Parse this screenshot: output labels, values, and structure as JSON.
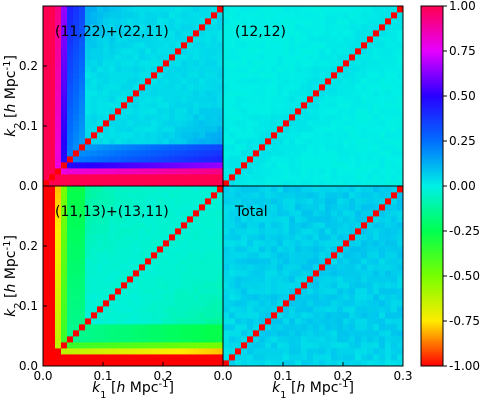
{
  "chart_data": {
    "type": "heatmap",
    "panels": [
      {
        "id": "p1",
        "label": "(11,22)+(22,11)",
        "pattern": "panel1",
        "x_range": [
          0.0,
          0.3
        ],
        "y_range": [
          0.0,
          0.3
        ],
        "yticks": [
          "0.0",
          "0.1",
          "0.2"
        ],
        "xticks": [],
        "ylabel": "k_2 [h Mpc^{-1}]",
        "xlabel": ""
      },
      {
        "id": "p2",
        "label": "(12,12)",
        "pattern": "panel2",
        "x_range": [
          0.0,
          0.3
        ],
        "y_range": [
          0.0,
          0.3
        ],
        "yticks": [],
        "xticks": [],
        "ylabel": "",
        "xlabel": ""
      },
      {
        "id": "p3",
        "label": "(11,13)+(13,11)",
        "pattern": "panel3",
        "x_range": [
          0.0,
          0.3
        ],
        "y_range": [
          0.0,
          0.3
        ],
        "yticks": [
          "0.0",
          "0.1",
          "0.2"
        ],
        "xticks": [
          "0.0",
          "0.1",
          "0.2"
        ],
        "ylabel": "k_2 [h Mpc^{-1}]",
        "xlabel": "k_1 [h Mpc^{-1}]"
      },
      {
        "id": "p4",
        "label": "Total",
        "pattern": "panel4",
        "x_range": [
          0.0,
          0.3
        ],
        "y_range": [
          0.0,
          0.3
        ],
        "yticks": [],
        "xticks": [
          "0.0",
          "0.1",
          "0.2",
          "0.3"
        ],
        "ylabel": "",
        "xlabel": "k_1 [h Mpc^{-1}]"
      }
    ],
    "colorbar": {
      "min": -1.0,
      "max": 1.0,
      "ticks": [
        "1.00",
        "0.75",
        "0.50",
        "0.25",
        "0.00",
        "-0.25",
        "-0.50",
        "-0.75",
        "-1.00"
      ],
      "colormap": "gist_rainbow"
    }
  }
}
